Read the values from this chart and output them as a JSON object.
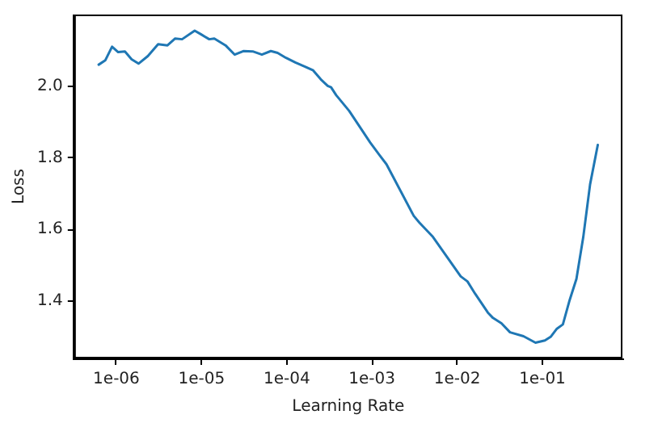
{
  "chart_data": {
    "type": "line",
    "xlabel": "Learning Rate",
    "ylabel": "Loss",
    "log": "x",
    "grid": false,
    "legend": false,
    "marker": "none",
    "line_style": "solid",
    "x": [
      6.2e-07,
      7.4e-07,
      8.9e-07,
      1.05e-06,
      1.26e-06,
      1.51e-06,
      1.82e-06,
      2.34e-06,
      3.09e-06,
      3.98e-06,
      4.9e-06,
      5.9e-06,
      8.3e-06,
      9.8e-06,
      1.23e-05,
      1.41e-05,
      1.91e-05,
      2.45e-05,
      3.09e-05,
      3.98e-05,
      5.1e-05,
      6.5e-05,
      7.8e-05,
      9.8e-05,
      0.000126,
      0.000166,
      0.000204,
      0.000251,
      0.000302,
      0.000331,
      0.00038,
      0.00054,
      0.00095,
      0.00123,
      0.00148,
      0.00309,
      0.0036,
      0.0052,
      0.011,
      0.0132,
      0.0162,
      0.0229,
      0.0263,
      0.0331,
      0.0417,
      0.06,
      0.083,
      0.107,
      0.126,
      0.148,
      0.174,
      0.209,
      0.251,
      0.302,
      0.363,
      0.447
    ],
    "series": [
      {
        "color": "#1f77b4",
        "values": [
          2.06,
          2.072,
          2.11,
          2.095,
          2.097,
          2.075,
          2.063,
          2.084,
          2.117,
          2.114,
          2.133,
          2.131,
          2.155,
          2.145,
          2.131,
          2.133,
          2.114,
          2.088,
          2.098,
          2.097,
          2.088,
          2.098,
          2.093,
          2.079,
          2.066,
          2.054,
          2.044,
          2.019,
          2.001,
          1.997,
          1.975,
          1.931,
          1.843,
          1.807,
          1.782,
          1.638,
          1.619,
          1.579,
          1.469,
          1.455,
          1.421,
          1.368,
          1.353,
          1.338,
          1.313,
          1.302,
          1.284,
          1.29,
          1.301,
          1.323,
          1.335,
          1.403,
          1.462,
          1.579,
          1.726,
          1.836
        ]
      }
    ],
    "xlim": [
      3.2e-07,
      0.87
    ],
    "ylim": [
      1.24,
      2.2
    ],
    "xticks": [
      {
        "value": 1e-06,
        "label": "1e-06"
      },
      {
        "value": 1e-05,
        "label": "1e-05"
      },
      {
        "value": 0.0001,
        "label": "1e-04"
      },
      {
        "value": 0.001,
        "label": "1e-03"
      },
      {
        "value": 0.01,
        "label": "1e-02"
      },
      {
        "value": 0.1,
        "label": "1e-01"
      }
    ],
    "yticks": [
      {
        "value": 1.4,
        "label": "1.4"
      },
      {
        "value": 1.6,
        "label": "1.6"
      },
      {
        "value": 1.8,
        "label": "1.8"
      },
      {
        "value": 2.0,
        "label": "2.0"
      }
    ]
  }
}
